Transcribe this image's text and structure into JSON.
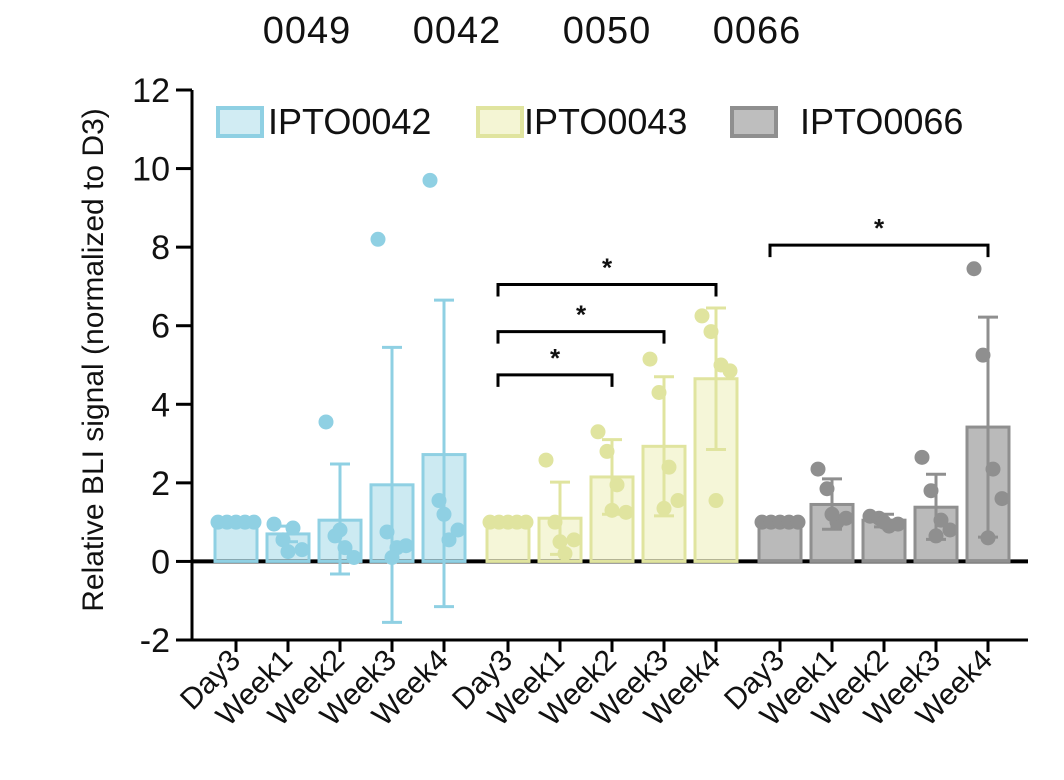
{
  "colors": {
    "blue": "#a3d9e8",
    "blue_dark": "#8fd0e3",
    "yellow": "#ecefb8",
    "yellow_dark": "#e0e49f",
    "gray": "#a3a3a3",
    "gray_dark": "#8f8f8f",
    "axis": "#000000"
  },
  "header_labels": [
    "0049",
    "0042",
    "0050",
    "0066"
  ],
  "chart_data": {
    "type": "bar",
    "title": "",
    "xlabel": "",
    "ylabel": "Relative BLI signal (normalized to D3)",
    "ylim": [
      -2,
      12
    ],
    "yticks": [
      -2,
      0,
      2,
      4,
      6,
      8,
      10,
      12
    ],
    "legend": [
      "IPTO0042",
      "IPTO0043",
      "IPTO0066"
    ],
    "legend_position": "top",
    "categories": [
      "Day3",
      "Week1",
      "Week2",
      "Week3",
      "Week4"
    ],
    "series": [
      {
        "name": "IPTO0042",
        "color_key": "blue",
        "means": [
          1.0,
          0.7,
          1.05,
          1.95,
          2.72
        ],
        "error_high": [
          1.0,
          0.9,
          2.48,
          5.45,
          6.65
        ],
        "error_low": [
          1.0,
          0.5,
          -0.32,
          -1.55,
          -1.15
        ],
        "points": [
          [
            1.0,
            1.0,
            1.0,
            1.0,
            1.0
          ],
          [
            0.95,
            0.55,
            0.85,
            0.3,
            0.25
          ],
          [
            3.55,
            0.65,
            0.35,
            0.1,
            0.8
          ],
          [
            8.2,
            0.75,
            0.35,
            0.4,
            0.1
          ],
          [
            9.7,
            1.55,
            0.55,
            0.8,
            1.2
          ]
        ]
      },
      {
        "name": "IPTO0043",
        "color_key": "yellow",
        "means": [
          1.0,
          1.1,
          2.15,
          2.93,
          4.65
        ],
        "error_high": [
          1.0,
          2.02,
          3.1,
          4.7,
          6.45
        ],
        "error_low": [
          1.0,
          0.18,
          1.2,
          1.16,
          2.85
        ],
        "points": [
          [
            1.0,
            1.0,
            1.0,
            1.0,
            1.0
          ],
          [
            2.58,
            1.0,
            0.2,
            0.55,
            0.5
          ],
          [
            3.3,
            2.8,
            1.95,
            1.25,
            1.3
          ],
          [
            5.15,
            4.3,
            2.4,
            1.55,
            1.35
          ],
          [
            6.25,
            5.85,
            5.0,
            4.85,
            1.55
          ]
        ]
      },
      {
        "name": "IPTO0066",
        "color_key": "gray",
        "means": [
          1.0,
          1.45,
          1.05,
          1.38,
          3.42
        ],
        "error_high": [
          1.0,
          2.1,
          1.2,
          2.22,
          6.22
        ],
        "error_low": [
          1.0,
          0.82,
          0.88,
          0.56,
          0.62
        ],
        "points": [
          [
            1.0,
            1.0,
            1.0,
            1.0,
            1.0
          ],
          [
            2.35,
            1.85,
            1.0,
            1.1,
            1.2
          ],
          [
            1.15,
            1.1,
            0.9,
            0.95,
            1.0
          ],
          [
            2.65,
            1.8,
            1.05,
            0.8,
            0.65
          ],
          [
            7.45,
            5.25,
            2.35,
            1.6,
            0.6
          ]
        ]
      }
    ],
    "significance": [
      {
        "series": 1,
        "from": 0,
        "to": 2,
        "label": "*"
      },
      {
        "series": 1,
        "from": 0,
        "to": 3,
        "label": "*"
      },
      {
        "series": 1,
        "from": 0,
        "to": 4,
        "label": "*"
      },
      {
        "series": 2,
        "from": 0,
        "to": 4,
        "label": "*"
      }
    ]
  }
}
